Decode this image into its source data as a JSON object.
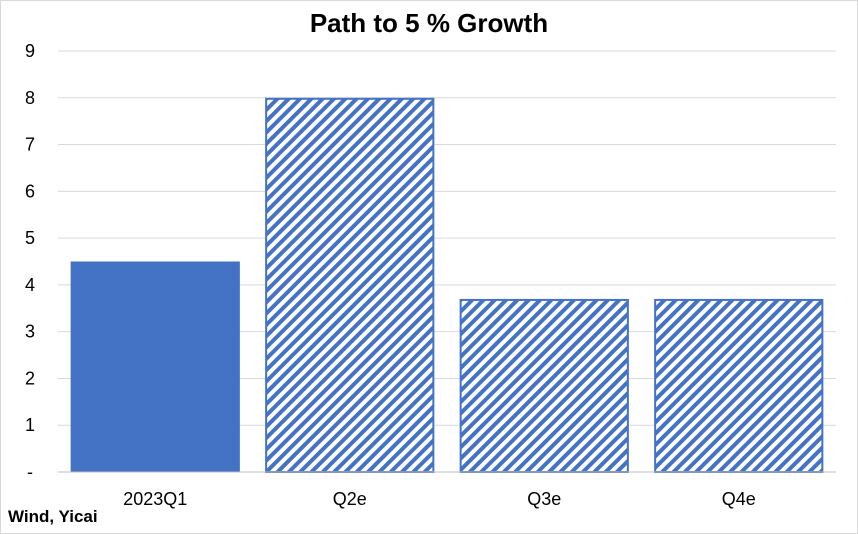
{
  "chart_data": {
    "type": "bar",
    "title": "Path to 5 % Growth",
    "categories": [
      "2023Q1",
      "Q2e",
      "Q3e",
      "Q4e"
    ],
    "values": [
      4.5,
      8.0,
      3.7,
      3.7
    ],
    "bar_styles": [
      "solid",
      "hatched",
      "hatched",
      "hatched"
    ],
    "ylim": [
      0,
      9
    ],
    "yticks": [
      0,
      1,
      2,
      3,
      4,
      5,
      6,
      7,
      8,
      9
    ],
    "ytick_labels": [
      "-",
      "1",
      "2",
      "3",
      "4",
      "5",
      "6",
      "7",
      "8",
      "9"
    ],
    "grid": true,
    "legend": "none",
    "source": "Wind, Yicai",
    "colors": {
      "bar": "#4472c4",
      "grid": "#d9d9d9",
      "axis": "#bfbfbf"
    }
  }
}
